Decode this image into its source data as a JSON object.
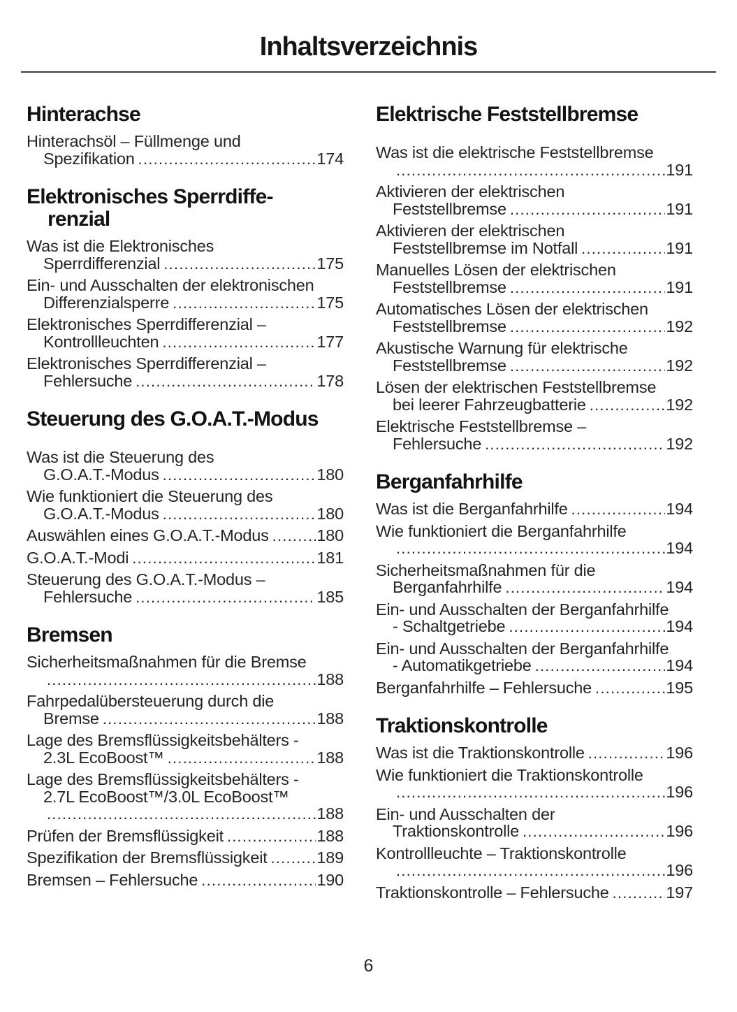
{
  "page": {
    "title": "Inhaltsverzeichnis",
    "footer_page_number": "6"
  },
  "toc": {
    "columns": [
      {
        "sections": [
          {
            "heading_lines": [
              "Hinterachse"
            ],
            "extra_gap": false,
            "entries": [
              {
                "lines": [
                  "Hinterachsöl – Füllmenge und",
                  "Spezifikation"
                ],
                "page": "174"
              }
            ]
          },
          {
            "heading_lines": [
              "Elektronisches Sperrdiffe-",
              "renzial"
            ],
            "extra_gap": false,
            "entries": [
              {
                "lines": [
                  "Was ist die Elektronisches",
                  "Sperrdifferenzial"
                ],
                "page": "175"
              },
              {
                "lines": [
                  "Ein- und Ausschalten der elektronischen",
                  "Differenzialsperre"
                ],
                "page": "175"
              },
              {
                "lines": [
                  "Elektronisches Sperrdifferenzial –",
                  "Kontrollleuchten"
                ],
                "page": "177"
              },
              {
                "lines": [
                  "Elektronisches Sperrdifferenzial –",
                  "Fehlersuche"
                ],
                "page": "178"
              }
            ]
          },
          {
            "heading_lines": [
              "Steuerung des G.O.A.T.-Modus"
            ],
            "extra_gap": true,
            "entries": [
              {
                "lines": [
                  "Was ist die Steuerung des",
                  "G.O.A.T.-Modus"
                ],
                "page": "180"
              },
              {
                "lines": [
                  "Wie funktioniert die Steuerung des",
                  "G.O.A.T.-Modus"
                ],
                "page": "180"
              },
              {
                "lines": [
                  "Auswählen eines G.O.A.T.-Modus"
                ],
                "page": "180"
              },
              {
                "lines": [
                  "G.O.A.T.-Modi"
                ],
                "page": "181"
              },
              {
                "lines": [
                  "Steuerung des G.O.A.T.-Modus –",
                  "Fehlersuche"
                ],
                "page": "185"
              }
            ]
          },
          {
            "heading_lines": [
              "Bremsen"
            ],
            "extra_gap": false,
            "entries": [
              {
                "lines": [
                  "Sicherheitsmaßnahmen für die Bremse",
                  ""
                ],
                "page": "188"
              },
              {
                "lines": [
                  "Fahrpedalübersteuerung durch die",
                  "Bremse"
                ],
                "page": "188"
              },
              {
                "lines": [
                  "Lage des Bremsflüssigkeitsbehälters -",
                  "2.3L EcoBoost™"
                ],
                "page": "188"
              },
              {
                "lines": [
                  "Lage des Bremsflüssigkeitsbehälters -",
                  "2.7L EcoBoost™/3.0L EcoBoost™",
                  ""
                ],
                "page": "188"
              },
              {
                "lines": [
                  "Prüfen der Bremsflüssigkeit"
                ],
                "page": "188"
              },
              {
                "lines": [
                  "Spezifikation der Bremsflüssigkeit"
                ],
                "page": "189"
              },
              {
                "lines": [
                  "Bremsen – Fehlersuche"
                ],
                "page": "190"
              }
            ]
          }
        ]
      },
      {
        "sections": [
          {
            "heading_lines": [
              "Elektrische Feststellbremse"
            ],
            "extra_gap": true,
            "entries": [
              {
                "lines": [
                  "Was ist die elektrische Feststellbremse",
                  ""
                ],
                "page": "191"
              },
              {
                "lines": [
                  "Aktivieren der elektrischen",
                  "Feststellbremse"
                ],
                "page": "191"
              },
              {
                "lines": [
                  "Aktivieren der elektrischen",
                  "Feststellbremse im Notfall"
                ],
                "page": "191"
              },
              {
                "lines": [
                  "Manuelles Lösen der elektrischen",
                  "Feststellbremse"
                ],
                "page": "191"
              },
              {
                "lines": [
                  "Automatisches Lösen der elektrischen",
                  "Feststellbremse"
                ],
                "page": "192"
              },
              {
                "lines": [
                  "Akustische Warnung für elektrische",
                  "Feststellbremse"
                ],
                "page": "192"
              },
              {
                "lines": [
                  "Lösen der elektrischen Feststellbremse",
                  "bei leerer Fahrzeugbatterie"
                ],
                "page": "192"
              },
              {
                "lines": [
                  "Elektrische Feststellbremse –",
                  "Fehlersuche"
                ],
                "page": "192"
              }
            ]
          },
          {
            "heading_lines": [
              "Berganfahrhilfe"
            ],
            "extra_gap": false,
            "entries": [
              {
                "lines": [
                  "Was ist die Berganfahrhilfe"
                ],
                "page": "194"
              },
              {
                "lines": [
                  "Wie funktioniert die Berganfahrhilfe",
                  ""
                ],
                "page": "194"
              },
              {
                "lines": [
                  "Sicherheitsmaßnahmen für die",
                  "Berganfahrhilfe"
                ],
                "page": "194"
              },
              {
                "lines": [
                  "Ein- und Ausschalten der Berganfahrhilfe",
                  "- Schaltgetriebe"
                ],
                "page": "194"
              },
              {
                "lines": [
                  "Ein- und Ausschalten der Berganfahrhilfe",
                  "- Automatikgetriebe"
                ],
                "page": "194"
              },
              {
                "lines": [
                  "Berganfahrhilfe – Fehlersuche"
                ],
                "page": "195"
              }
            ]
          },
          {
            "heading_lines": [
              "Traktionskontrolle"
            ],
            "extra_gap": false,
            "entries": [
              {
                "lines": [
                  "Was ist die Traktionskontrolle"
                ],
                "page": "196"
              },
              {
                "lines": [
                  "Wie funktioniert die Traktionskontrolle",
                  ""
                ],
                "page": "196"
              },
              {
                "lines": [
                  "Ein- und Ausschalten der",
                  "Traktionskontrolle"
                ],
                "page": "196"
              },
              {
                "lines": [
                  "Kontrollleuchte – Traktionskontrolle",
                  ""
                ],
                "page": "196"
              },
              {
                "lines": [
                  "Traktionskontrolle – Fehlersuche"
                ],
                "page": "197"
              }
            ]
          }
        ]
      }
    ]
  }
}
